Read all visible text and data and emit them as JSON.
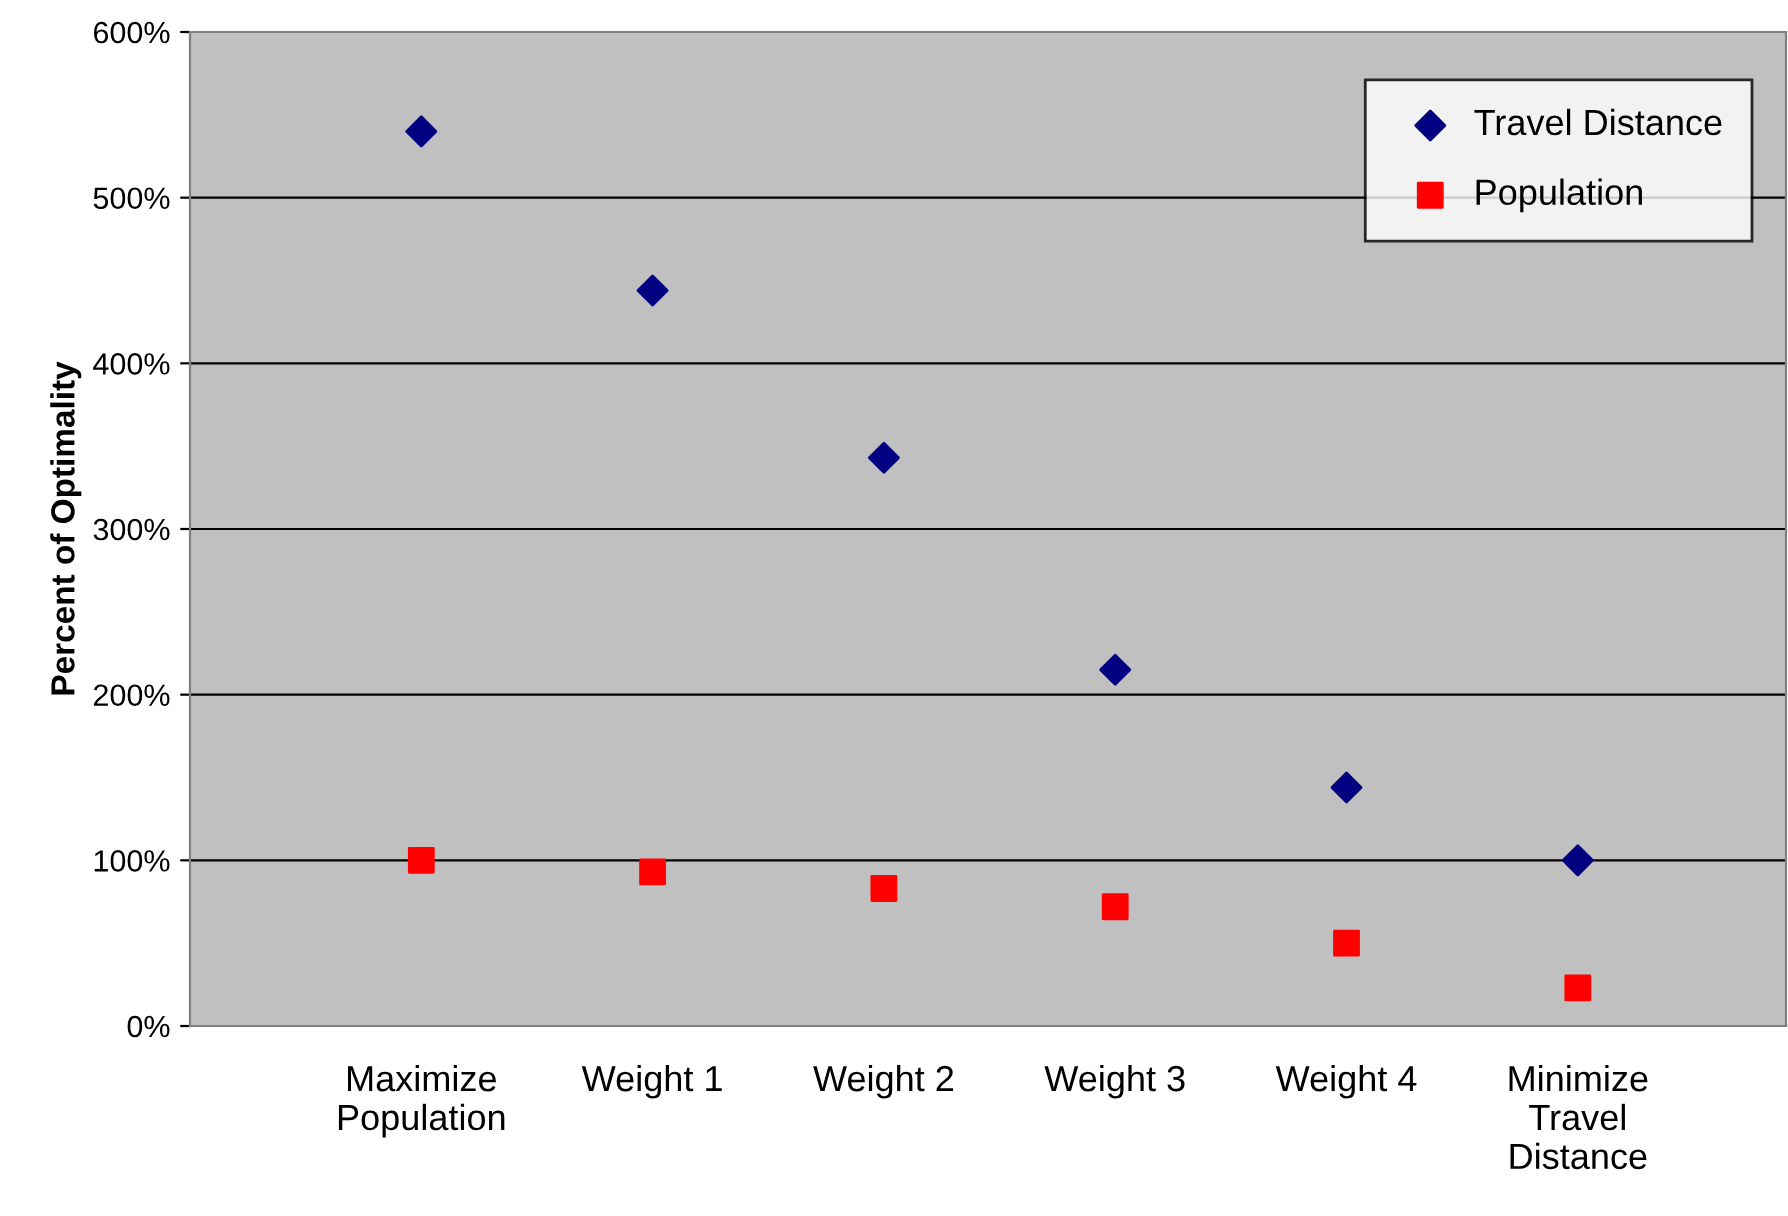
{
  "chart_data": {
    "type": "scatter",
    "ylabel": "Percent of Optimality",
    "categories": [
      "Maximize\nPopulation",
      "Weight 1",
      "Weight 2",
      "Weight 3",
      "Weight 4",
      "Minimize\nTravel\nDistance"
    ],
    "series": [
      {
        "name": "Travel Distance",
        "color": "#000080",
        "marker": "diamond",
        "values": [
          540,
          444,
          343,
          215,
          144,
          100
        ]
      },
      {
        "name": "Population",
        "color": "#ff0000",
        "marker": "square",
        "values": [
          100,
          93,
          83,
          72,
          50,
          23
        ]
      }
    ],
    "ylim": [
      0,
      600
    ],
    "yticks": [
      {
        "value": 0,
        "label": "0%"
      },
      {
        "value": 100,
        "label": "100%"
      },
      {
        "value": 200,
        "label": "200%"
      },
      {
        "value": 300,
        "label": "300%"
      },
      {
        "value": 400,
        "label": "400%"
      },
      {
        "value": 500,
        "label": "500%"
      },
      {
        "value": 600,
        "label": "600%"
      }
    ],
    "grid": "y",
    "legend": "top right"
  }
}
